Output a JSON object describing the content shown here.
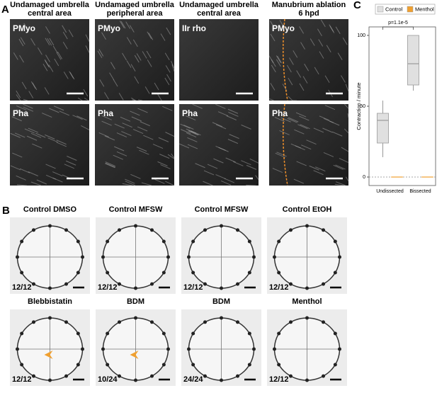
{
  "panel_a": {
    "label": "A",
    "columns": [
      {
        "title": [
          "Undamaged umbrella",
          "central area"
        ],
        "top": "PMyo",
        "bottom": "Pha"
      },
      {
        "title": [
          "Undamaged umbrella",
          "peripheral area"
        ],
        "top": "PMyo",
        "bottom": "Pha"
      },
      {
        "title": [
          "Undamaged umbrella",
          "central area"
        ],
        "top": "IIr rho",
        "bottom": "Pha"
      },
      {
        "title": [
          "Manubrium ablation",
          "6 hpd"
        ],
        "top": "PMyo",
        "bottom": "Pha"
      }
    ]
  },
  "panel_b": {
    "label": "B",
    "images": [
      {
        "title": "Control DMSO",
        "count": "12/12"
      },
      {
        "title": "Control MFSW",
        "count": "12/12"
      },
      {
        "title": "Control MFSW",
        "count": "12/12"
      },
      {
        "title": "Control EtOH",
        "count": "12/12"
      },
      {
        "title": "Blebbistatin",
        "count": "12/12"
      },
      {
        "title": "BDM",
        "count": "10/24"
      },
      {
        "title": "BDM",
        "count": "24/24"
      },
      {
        "title": "Menthol",
        "count": "12/12"
      }
    ]
  },
  "chart_data": {
    "type": "box",
    "panel_label": "C",
    "ylabel": "Contraction / minute",
    "categories": [
      "Undissected",
      "Bissected"
    ],
    "series": [
      {
        "name": "Control",
        "color": "#e0e0e0",
        "boxes": [
          {
            "whislo": 14,
            "q1": 24,
            "med": 40,
            "q3": 45,
            "whishi": 54
          },
          {
            "whislo": 61,
            "q1": 65,
            "med": 80,
            "q3": 100,
            "whishi": 100
          }
        ]
      },
      {
        "name": "Menthol",
        "color": "#f0a030",
        "boxes": [
          {
            "whislo": 0,
            "q1": 0,
            "med": 0,
            "q3": 0,
            "whishi": 0
          },
          {
            "whislo": 0,
            "q1": 0,
            "med": 0,
            "q3": 0,
            "whishi": 0
          }
        ]
      }
    ],
    "reference_line": 0,
    "annotation": "p=1.1e-5",
    "ylim": [
      -6,
      106
    ],
    "yticks": [
      0,
      50,
      100
    ],
    "legend": "top"
  }
}
